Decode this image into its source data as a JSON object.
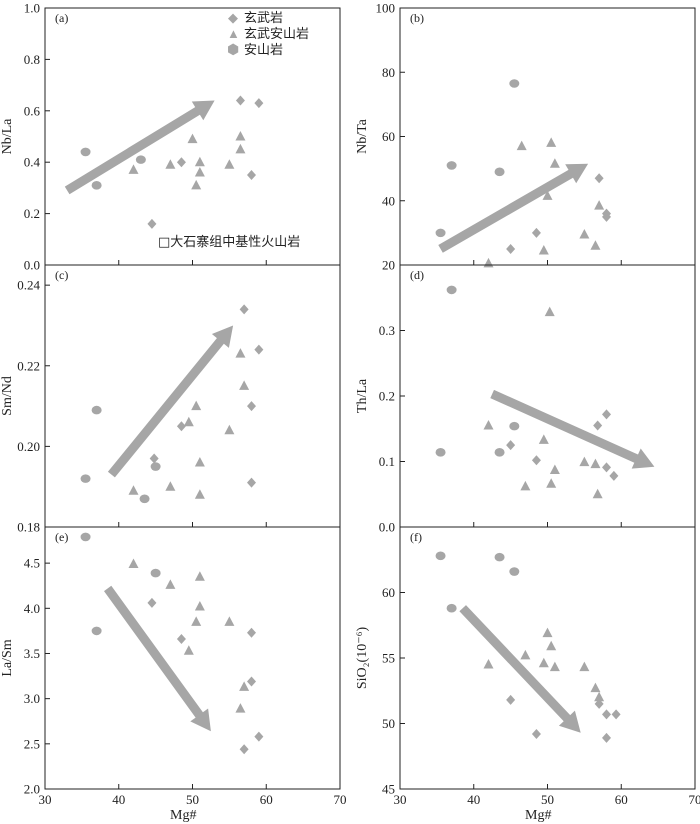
{
  "figure": {
    "xlabel": "Mg#",
    "legend": {
      "items": [
        {
          "symbol": "diamond",
          "label": "玄武岩"
        },
        {
          "symbol": "triangle",
          "label": "玄武安山岩"
        },
        {
          "symbol": "circle",
          "label": "安山岩"
        }
      ],
      "note": "□大石寨组中基性火山岩"
    },
    "colors": {
      "marker": "#a6a6a6",
      "arrow": "#a6a6a6",
      "axis": "#222222"
    }
  },
  "chart_data": [
    {
      "type": "scatter",
      "panel": "(a)",
      "ylabel": "Nb/La",
      "xlim": [
        30,
        70
      ],
      "ylim": [
        0.0,
        1.0
      ],
      "yticks": [
        "0.0",
        "0.2",
        "0.4",
        "0.6",
        "0.8",
        "1.0"
      ],
      "xticks": [
        "30",
        "40",
        "50",
        "60",
        "70"
      ],
      "series": [
        {
          "symbol": "diamond",
          "points": [
            [
              44.5,
              0.16
            ],
            [
              48.5,
              0.4
            ],
            [
              56.5,
              0.64
            ],
            [
              58,
              0.35
            ],
            [
              59,
              0.63
            ]
          ]
        },
        {
          "symbol": "triangle",
          "points": [
            [
              42,
              0.37
            ],
            [
              47,
              0.39
            ],
            [
              50,
              0.49
            ],
            [
              50.5,
              0.31
            ],
            [
              51,
              0.36
            ],
            [
              51,
              0.4
            ],
            [
              55,
              0.39
            ],
            [
              56.5,
              0.45
            ],
            [
              56.5,
              0.5
            ]
          ]
        },
        {
          "symbol": "circle",
          "points": [
            [
              35.5,
              0.44
            ],
            [
              37,
              0.31
            ],
            [
              43,
              0.41
            ]
          ]
        }
      ],
      "trend_arrow": {
        "from": [
          33,
          0.29
        ],
        "to": [
          53,
          0.64
        ]
      }
    },
    {
      "type": "scatter",
      "panel": "(b)",
      "ylabel": "Nb/Ta",
      "xlim": [
        30,
        70
      ],
      "ylim": [
        20,
        100
      ],
      "yticks": [
        "20",
        "40",
        "60",
        "80",
        "100"
      ],
      "xticks": [
        "30",
        "40",
        "50",
        "60",
        "70"
      ],
      "series": [
        {
          "symbol": "diamond",
          "points": [
            [
              45,
              25
            ],
            [
              48.5,
              30
            ],
            [
              57,
              47
            ],
            [
              58,
              35
            ],
            [
              58,
              36
            ]
          ]
        },
        {
          "symbol": "triangle",
          "points": [
            [
              42,
              20.5
            ],
            [
              46.5,
              57
            ],
            [
              49.5,
              24.5
            ],
            [
              50,
              41.5
            ],
            [
              50.5,
              58
            ],
            [
              51,
              51.5
            ],
            [
              55,
              29.5
            ],
            [
              56.5,
              26
            ],
            [
              57,
              38.5
            ]
          ]
        },
        {
          "symbol": "circle",
          "points": [
            [
              35.5,
              30
            ],
            [
              37,
              51
            ],
            [
              43.5,
              49
            ],
            [
              45.5,
              76.5
            ]
          ]
        }
      ],
      "trend_arrow": {
        "from": [
          35.5,
          25
        ],
        "to": [
          55.5,
          51.5
        ]
      }
    },
    {
      "type": "scatter",
      "panel": "(c)",
      "ylabel": "Sm/Nd",
      "xlim": [
        30,
        70
      ],
      "ylim": [
        0.18,
        0.245
      ],
      "yticks": [
        "0.18",
        "0.20",
        "0.22",
        "0.24"
      ],
      "xticks": [
        "30",
        "40",
        "50",
        "60",
        "70"
      ],
      "series": [
        {
          "symbol": "diamond",
          "points": [
            [
              44.8,
              0.197
            ],
            [
              48.5,
              0.205
            ],
            [
              57,
              0.234
            ],
            [
              58,
              0.21
            ],
            [
              58,
              0.191
            ],
            [
              59,
              0.224
            ]
          ]
        },
        {
          "symbol": "triangle",
          "points": [
            [
              42,
              0.189
            ],
            [
              47,
              0.19
            ],
            [
              49.5,
              0.206
            ],
            [
              50.5,
              0.21
            ],
            [
              51,
              0.196
            ],
            [
              51,
              0.188
            ],
            [
              55,
              0.204
            ],
            [
              56.5,
              0.223
            ],
            [
              57,
              0.215
            ]
          ]
        },
        {
          "symbol": "circle",
          "points": [
            [
              35.5,
              0.192
            ],
            [
              37,
              0.209
            ],
            [
              43.5,
              0.187
            ],
            [
              45,
              0.195
            ]
          ]
        }
      ],
      "trend_arrow": {
        "from": [
          39,
          0.193
        ],
        "to": [
          55.5,
          0.23
        ]
      }
    },
    {
      "type": "scatter",
      "panel": "(d)",
      "ylabel": "Th/La",
      "xlim": [
        30,
        70
      ],
      "ylim": [
        0.0,
        0.4
      ],
      "yticks": [
        "0.0",
        "0.1",
        "0.2",
        "0.3"
      ],
      "xticks": [
        "30",
        "40",
        "50",
        "60",
        "70"
      ],
      "series": [
        {
          "symbol": "diamond",
          "points": [
            [
              45,
              0.125
            ],
            [
              48.5,
              0.102
            ],
            [
              56.8,
              0.155
            ],
            [
              58,
              0.172
            ],
            [
              58,
              0.091
            ],
            [
              59,
              0.078
            ]
          ]
        },
        {
          "symbol": "triangle",
          "points": [
            [
              42,
              0.155
            ],
            [
              47,
              0.062
            ],
            [
              49.5,
              0.133
            ],
            [
              50.3,
              0.328
            ],
            [
              50.5,
              0.066
            ],
            [
              51,
              0.087
            ],
            [
              55,
              0.099
            ],
            [
              56.5,
              0.096
            ],
            [
              56.8,
              0.05
            ]
          ]
        },
        {
          "symbol": "circle",
          "points": [
            [
              35.5,
              0.114
            ],
            [
              37,
              0.362
            ],
            [
              43.5,
              0.114
            ],
            [
              45.5,
              0.154
            ]
          ]
        }
      ],
      "trend_arrow": {
        "from": [
          42.5,
          0.203
        ],
        "to": [
          64.5,
          0.092
        ]
      }
    },
    {
      "type": "scatter",
      "panel": "(e)",
      "ylabel": "La/Sm",
      "xlim": [
        30,
        70
      ],
      "ylim": [
        2.0,
        4.9
      ],
      "yticks": [
        "2.0",
        "2.5",
        "3.0",
        "3.5",
        "4.0",
        "4.5"
      ],
      "xticks": [
        "30",
        "40",
        "50",
        "60",
        "70"
      ],
      "series": [
        {
          "symbol": "diamond",
          "points": [
            [
              44.5,
              4.06
            ],
            [
              48.5,
              3.66
            ],
            [
              57,
              2.44
            ],
            [
              58,
              3.73
            ],
            [
              58,
              3.19
            ],
            [
              59,
              2.58
            ]
          ]
        },
        {
          "symbol": "triangle",
          "points": [
            [
              42,
              4.49
            ],
            [
              47,
              4.26
            ],
            [
              49.5,
              3.53
            ],
            [
              50.5,
              3.85
            ],
            [
              51,
              4.02
            ],
            [
              51,
              4.35
            ],
            [
              55,
              3.85
            ],
            [
              56.5,
              2.89
            ],
            [
              57,
              3.13
            ]
          ]
        },
        {
          "symbol": "circle",
          "points": [
            [
              35.5,
              4.79
            ],
            [
              37,
              3.75
            ],
            [
              45,
              4.39
            ]
          ]
        }
      ],
      "trend_arrow": {
        "from": [
          38.5,
          4.22
        ],
        "to": [
          52.5,
          2.64
        ]
      }
    },
    {
      "type": "scatter",
      "panel": "(f)",
      "ylabel": "SiO₂(10⁻⁶)",
      "xlim": [
        30,
        70
      ],
      "ylim": [
        45,
        65
      ],
      "yticks": [
        "45",
        "50",
        "55",
        "60"
      ],
      "xticks": [
        "30",
        "40",
        "50",
        "60",
        "70"
      ],
      "series": [
        {
          "symbol": "diamond",
          "points": [
            [
              45,
              51.8
            ],
            [
              48.5,
              49.2
            ],
            [
              57,
              51.5
            ],
            [
              58,
              48.9
            ],
            [
              58,
              50.7
            ],
            [
              59.3,
              50.7
            ]
          ]
        },
        {
          "symbol": "triangle",
          "points": [
            [
              42,
              54.5
            ],
            [
              47,
              55.2
            ],
            [
              49.5,
              54.6
            ],
            [
              50,
              56.9
            ],
            [
              50.5,
              55.9
            ],
            [
              51,
              54.3
            ],
            [
              55,
              54.3
            ],
            [
              56.5,
              52.7
            ],
            [
              57,
              52.0
            ]
          ]
        },
        {
          "symbol": "circle",
          "points": [
            [
              35.5,
              62.8
            ],
            [
              37,
              58.8
            ],
            [
              43.5,
              62.7
            ],
            [
              45.5,
              61.6
            ]
          ]
        }
      ],
      "trend_arrow": {
        "from": [
          38.5,
          58.8
        ],
        "to": [
          54.5,
          49.3
        ]
      }
    }
  ]
}
